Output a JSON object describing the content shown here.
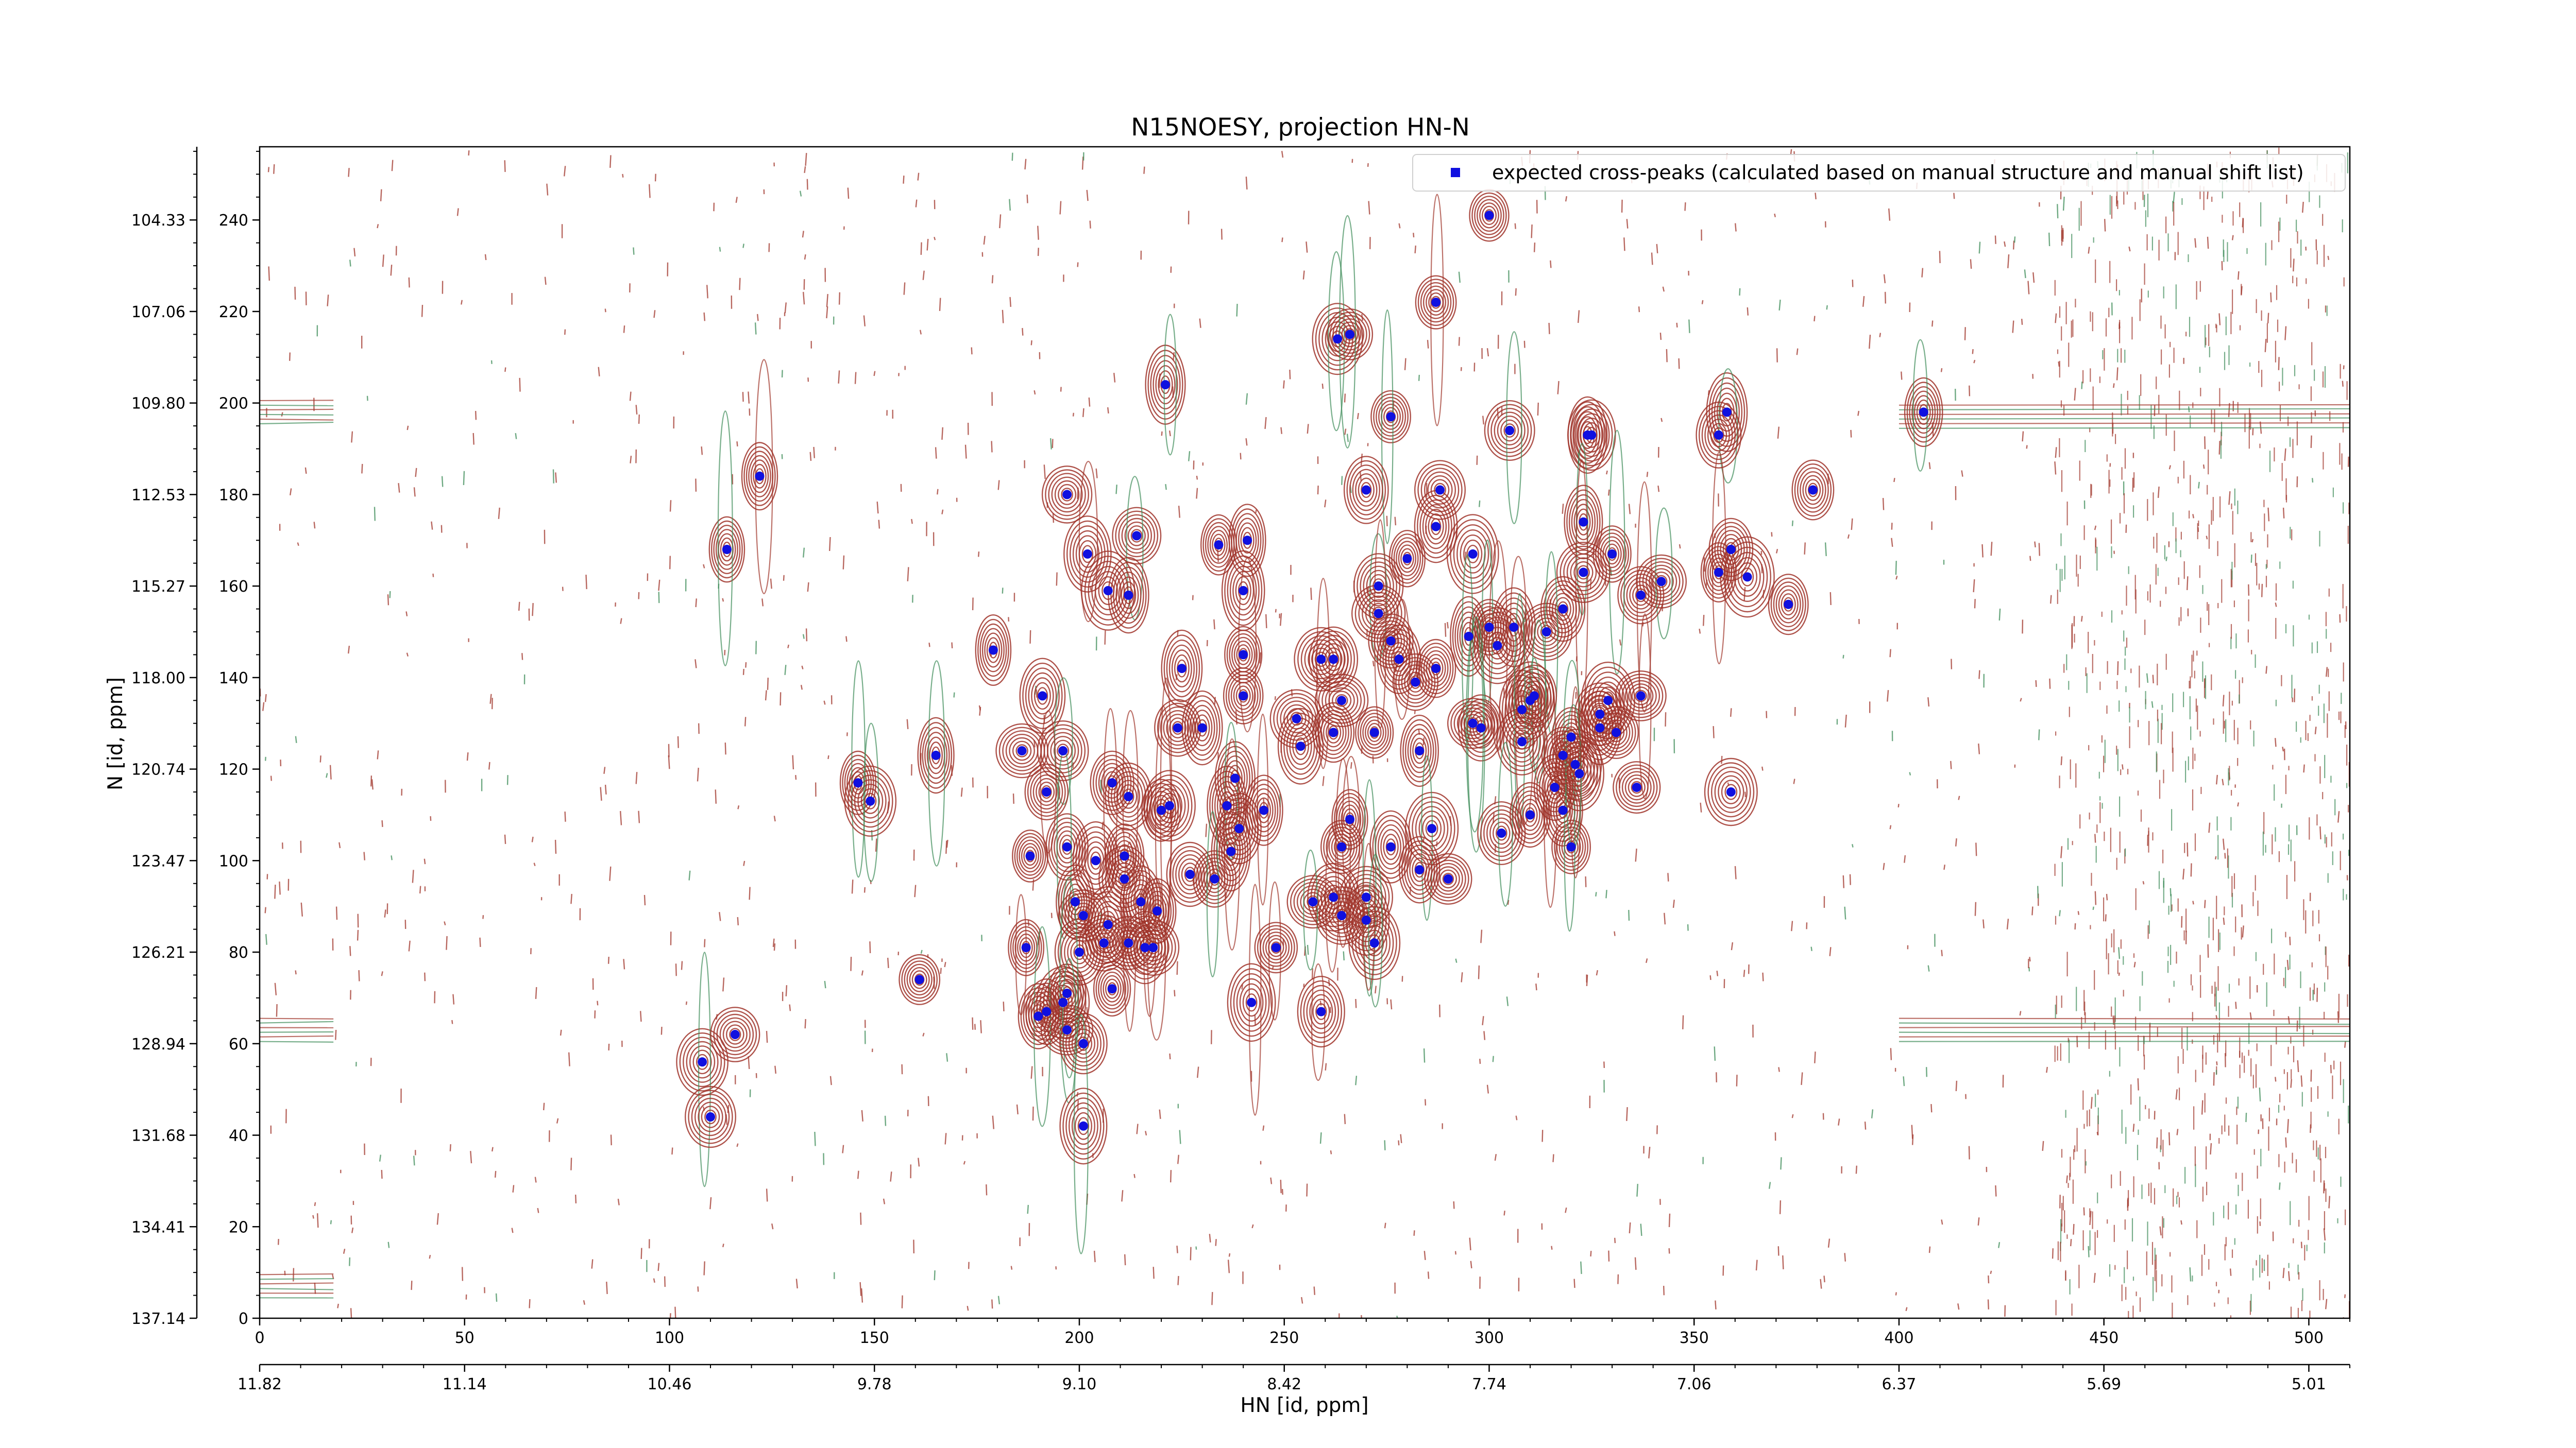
{
  "chart_data": {
    "type": "scatter",
    "title": "N15NOESY, projection HN-N",
    "xlabel": "HN [id, ppm]",
    "ylabel": "N [id, ppm]",
    "xlim": [
      0,
      510
    ],
    "ylim": [
      0,
      256
    ],
    "x_ticks": [
      0,
      50,
      100,
      150,
      200,
      250,
      300,
      350,
      400,
      450,
      500
    ],
    "y_ticks": [
      0,
      20,
      40,
      60,
      80,
      100,
      120,
      140,
      160,
      180,
      200,
      220,
      240
    ],
    "x_ppm_ticks": [
      "11.82",
      "11.14",
      "10.46",
      "9.78",
      "9.10",
      "8.42",
      "7.74",
      "7.06",
      "6.37",
      "5.69",
      "5.01"
    ],
    "y_ppm_ticks": [
      "137.14",
      "134.41",
      "131.68",
      "128.94",
      "126.21",
      "123.47",
      "120.74",
      "118.00",
      "115.27",
      "112.53",
      "109.80",
      "107.06",
      "104.33"
    ],
    "grid": false,
    "legend_position": "top-right",
    "legend": "expected cross-peaks (calculated based on manual structure and manual shift list)",
    "colors": {
      "peaks": "#1010e0",
      "contour_positive": "#a0342a",
      "contour_negative": "#3d8c58"
    },
    "series": [
      {
        "name": "expected cross-peaks (calculated based on manual structure and manual shift list)",
        "points": [
          [
            300,
            241
          ],
          [
            287,
            222
          ],
          [
            263,
            214
          ],
          [
            266,
            215
          ],
          [
            221,
            204
          ],
          [
            406,
            198
          ],
          [
            358,
            198
          ],
          [
            276,
            197
          ],
          [
            324,
            193
          ],
          [
            325,
            193
          ],
          [
            356,
            193
          ],
          [
            122,
            184
          ],
          [
            270,
            181
          ],
          [
            288,
            181
          ],
          [
            379,
            181
          ],
          [
            197,
            180
          ],
          [
            305,
            194
          ],
          [
            114,
            168
          ],
          [
            202,
            167
          ],
          [
            214,
            171
          ],
          [
            234,
            169
          ],
          [
            241,
            170
          ],
          [
            280,
            166
          ],
          [
            287,
            173
          ],
          [
            296,
            167
          ],
          [
            323,
            174
          ],
          [
            359,
            168
          ],
          [
            363,
            162
          ],
          [
            356,
            163
          ],
          [
            342,
            161
          ],
          [
            337,
            158
          ],
          [
            330,
            167
          ],
          [
            323,
            163
          ],
          [
            273,
            160
          ],
          [
            273,
            154
          ],
          [
            212,
            158
          ],
          [
            240,
            159
          ],
          [
            373,
            156
          ],
          [
            207,
            159
          ],
          [
            318,
            155
          ],
          [
            300,
            151
          ],
          [
            306,
            151
          ],
          [
            295,
            149
          ],
          [
            314,
            150
          ],
          [
            302,
            147
          ],
          [
            276,
            148
          ],
          [
            278,
            144
          ],
          [
            287,
            142
          ],
          [
            282,
            139
          ],
          [
            262,
            144
          ],
          [
            259,
            144
          ],
          [
            240,
            145
          ],
          [
            225,
            142
          ],
          [
            179,
            146
          ],
          [
            191,
            136
          ],
          [
            240,
            136
          ],
          [
            310,
            135
          ],
          [
            311,
            136
          ],
          [
            308,
            133
          ],
          [
            298,
            129
          ],
          [
            296,
            130
          ],
          [
            308,
            126
          ],
          [
            320,
            127
          ],
          [
            327,
            129
          ],
          [
            329,
            135
          ],
          [
            337,
            136
          ],
          [
            331,
            128
          ],
          [
            327,
            132
          ],
          [
            272,
            128
          ],
          [
            253,
            131
          ],
          [
            264,
            135
          ],
          [
            283,
            124
          ],
          [
            262,
            128
          ],
          [
            254,
            125
          ],
          [
            230,
            129
          ],
          [
            224,
            129
          ],
          [
            186,
            124
          ],
          [
            196,
            124
          ],
          [
            238,
            118
          ],
          [
            208,
            117
          ],
          [
            212,
            114
          ],
          [
            245,
            111
          ],
          [
            236,
            112
          ],
          [
            222,
            112
          ],
          [
            220,
            111
          ],
          [
            239,
            107
          ],
          [
            303,
            106
          ],
          [
            310,
            110
          ],
          [
            318,
            111
          ],
          [
            320,
            103
          ],
          [
            316,
            116
          ],
          [
            322,
            119
          ],
          [
            321,
            121
          ],
          [
            318,
            123
          ],
          [
            336,
            116
          ],
          [
            359,
            115
          ],
          [
            146,
            117
          ],
          [
            149,
            113
          ],
          [
            165,
            123
          ],
          [
            192,
            115
          ],
          [
            197,
            103
          ],
          [
            188,
            101
          ],
          [
            204,
            100
          ],
          [
            211,
            101
          ],
          [
            237,
            102
          ],
          [
            286,
            107
          ],
          [
            276,
            103
          ],
          [
            264,
            103
          ],
          [
            266,
            109
          ],
          [
            290,
            96
          ],
          [
            211,
            96
          ],
          [
            199,
            91
          ],
          [
            201,
            88
          ],
          [
            207,
            86
          ],
          [
            215,
            91
          ],
          [
            219,
            89
          ],
          [
            227,
            97
          ],
          [
            206,
            82
          ],
          [
            212,
            82
          ],
          [
            187,
            81
          ],
          [
            200,
            80
          ],
          [
            216,
            81
          ],
          [
            218,
            81
          ],
          [
            233,
            96
          ],
          [
            262,
            92
          ],
          [
            257,
            91
          ],
          [
            270,
            92
          ],
          [
            283,
            98
          ],
          [
            264,
            88
          ],
          [
            270,
            87
          ],
          [
            248,
            81
          ],
          [
            272,
            82
          ],
          [
            161,
            74
          ],
          [
            196,
            69
          ],
          [
            197,
            71
          ],
          [
            190,
            66
          ],
          [
            192,
            67
          ],
          [
            197,
            63
          ],
          [
            201,
            60
          ],
          [
            208,
            72
          ],
          [
            242,
            69
          ],
          [
            259,
            67
          ],
          [
            108,
            56
          ],
          [
            116,
            62
          ],
          [
            110,
            44
          ],
          [
            201,
            42
          ]
        ]
      }
    ]
  }
}
